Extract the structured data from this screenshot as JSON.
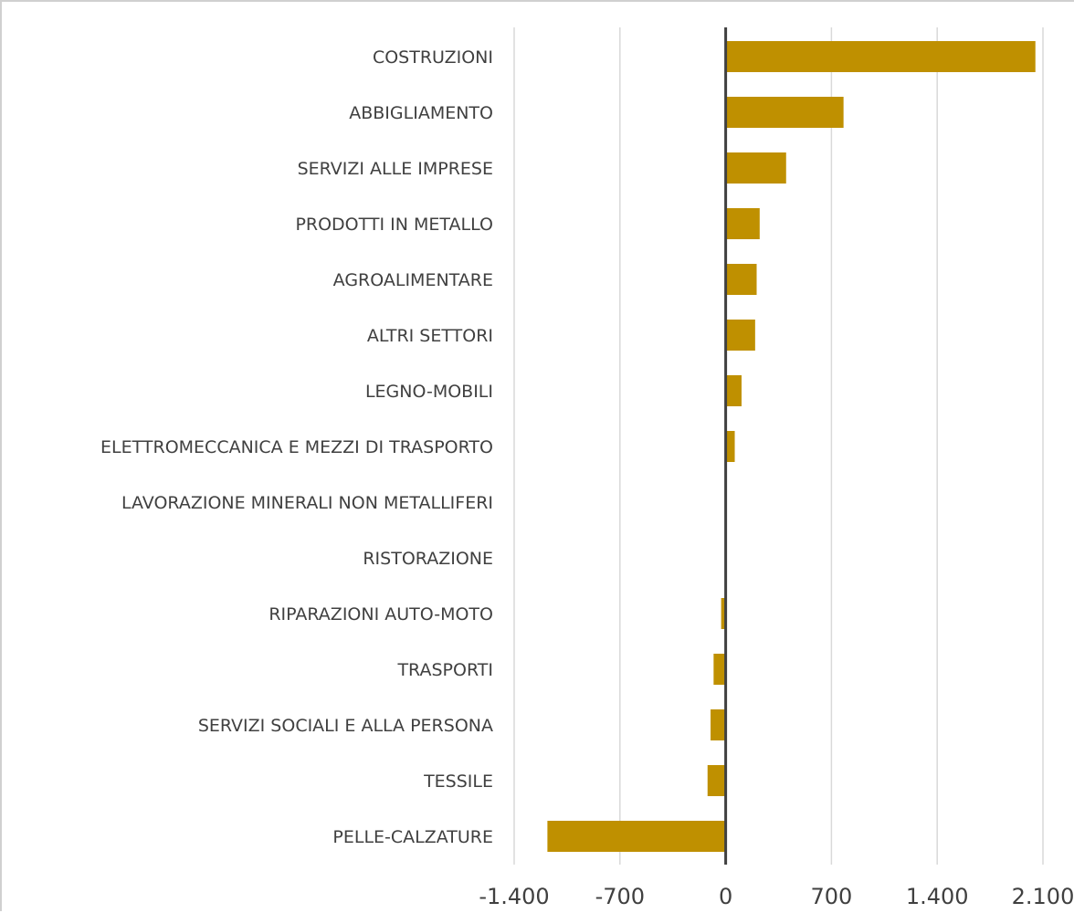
{
  "chart_data": {
    "type": "bar",
    "orientation": "horizontal",
    "title": "",
    "xlabel": "",
    "ylabel": "",
    "categories": [
      "COSTRUZIONI",
      "ABBIGLIAMENTO",
      "SERVIZI ALLE IMPRESE",
      "PRODOTTI IN METALLO",
      "AGROALIMENTARE",
      "ALTRI SETTORI",
      "LEGNO-MOBILI",
      "ELETTROMECCANICA E MEZZI DI TRASPORTO",
      "LAVORAZIONE MINERALI NON METALLIFERI",
      "RISTORAZIONE",
      "RIPARAZIONI AUTO-MOTO",
      "TRASPORTI",
      "SERVIZI SOCIALI E ALLA PERSONA",
      "TESSILE",
      "PELLE-CALZATURE"
    ],
    "values": [
      2050,
      780,
      400,
      225,
      205,
      195,
      105,
      60,
      0,
      0,
      -30,
      -80,
      -100,
      -120,
      -1180
    ],
    "xlim": [
      -1400,
      2100
    ],
    "ticks": [
      -1400,
      -700,
      0,
      700,
      1400,
      2100
    ],
    "tick_labels": [
      "-1.400",
      "-700",
      "0",
      "700",
      "1.400",
      "2.100"
    ],
    "grid": "vertical",
    "legend": "none",
    "colors": {
      "bar": "#BF9000",
      "gridline": "#d9d9d9",
      "zero_axis": "#404040",
      "text": "#404040"
    }
  }
}
